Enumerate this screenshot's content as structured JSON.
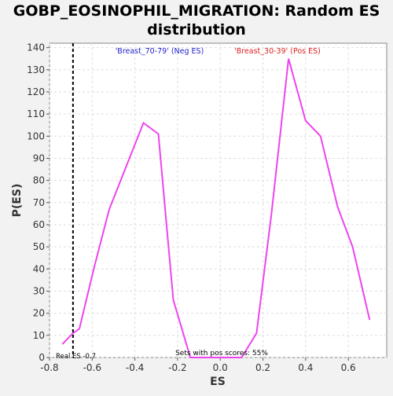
{
  "chart_data": {
    "type": "line",
    "title_line1": "GOBP_EOSINOPHIL_MIGRATION: Random ES",
    "title_line2": "distribution",
    "xlabel": "ES",
    "ylabel": "P(ES)",
    "xlim": [
      -0.8,
      0.78
    ],
    "ylim": [
      0,
      142
    ],
    "x_ticks": [
      -0.8,
      -0.6,
      -0.4,
      -0.2,
      0.0,
      0.2,
      0.4,
      0.6
    ],
    "x_tick_labels": [
      "-0.8",
      "-0.6",
      "-0.4",
      "-0.2",
      "0.0",
      "0.2",
      "0.4",
      "0.6"
    ],
    "y_ticks": [
      0,
      10,
      20,
      30,
      40,
      50,
      60,
      70,
      80,
      90,
      100,
      110,
      120,
      130,
      140
    ],
    "grid": true,
    "series": [
      {
        "color": "#ee44ee",
        "x": [
          -0.74,
          -0.69,
          -0.66,
          -0.59,
          -0.52,
          -0.36,
          -0.29,
          -0.22,
          -0.14,
          -0.05,
          0.02,
          0.1,
          0.17,
          0.24,
          0.32,
          0.4,
          0.47,
          0.55,
          0.62,
          0.7
        ],
        "y": [
          6,
          11,
          13,
          41,
          67,
          106,
          101,
          26,
          0,
          0,
          0,
          0,
          11,
          65,
          135,
          107,
          100,
          68,
          50,
          17
        ]
      }
    ],
    "annotations": {
      "neg_label": "'Breast_70-79' (Neg ES)",
      "neg_color": "#2222cc",
      "pos_label": "'Breast_30-39' (Pos ES)",
      "pos_color": "#dd2222",
      "real_es_label": "Real ES -0.7",
      "real_es_x": -0.69,
      "pos_scores_label": "Sets with pos scores: 55%"
    }
  }
}
